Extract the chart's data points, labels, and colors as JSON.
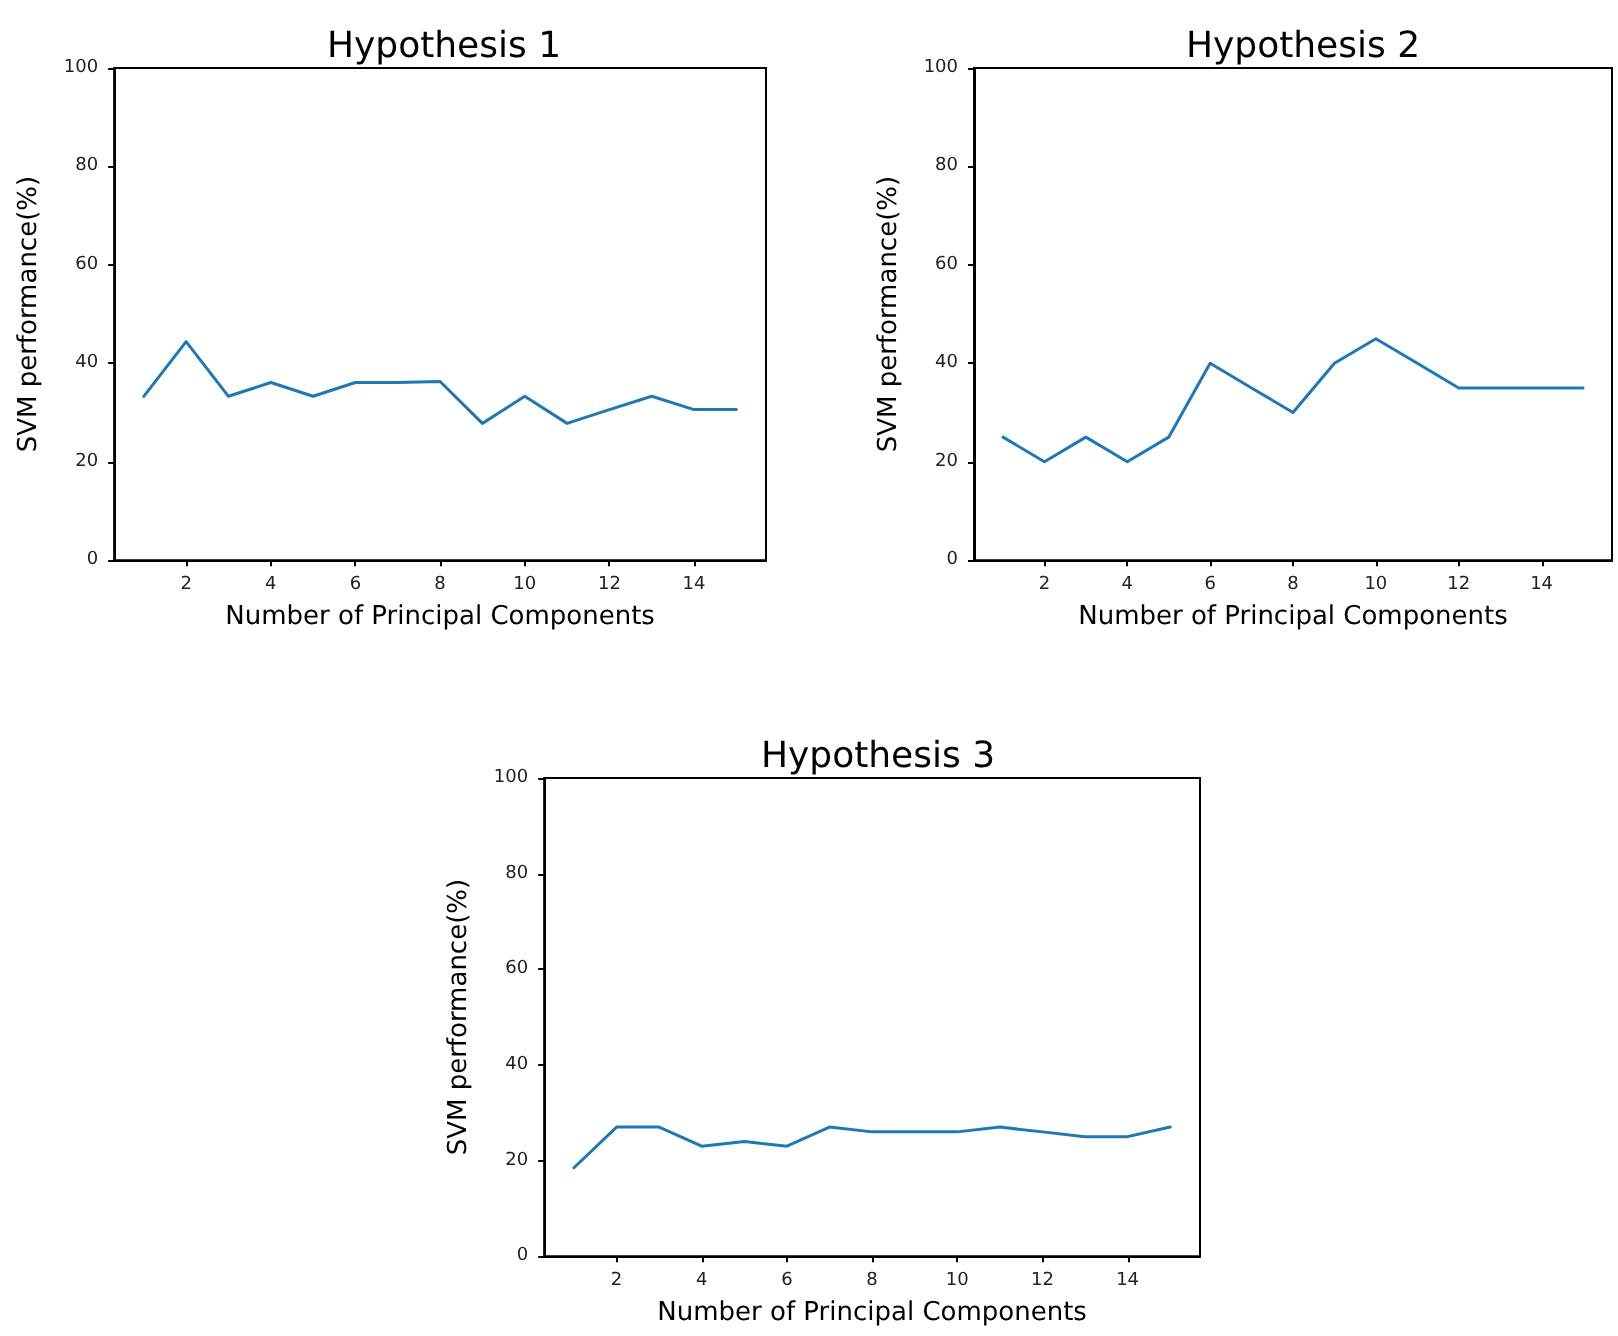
{
  "chart_data": [
    {
      "type": "line",
      "title": "Hypothesis 1",
      "xlabel": "Number of Principal Components",
      "ylabel": "SVM performance(%)",
      "x": [
        1,
        2,
        3,
        4,
        5,
        6,
        7,
        8,
        9,
        10,
        11,
        12,
        13,
        14,
        15
      ],
      "series": [
        {
          "color": "#1f77b4",
          "values": [
            33.3,
            44.4,
            33.3,
            36.1,
            33.3,
            36.1,
            36.1,
            36.3,
            27.8,
            33.3,
            27.8,
            30.6,
            33.3,
            30.6,
            30.6
          ]
        }
      ],
      "xlim": [
        0.3,
        15.7
      ],
      "xticks": [
        2,
        4,
        6,
        8,
        10,
        12,
        14
      ],
      "ylim": [
        0,
        100
      ],
      "yticks": [
        0,
        20,
        40,
        60,
        80,
        100
      ],
      "grid": false,
      "marker": "none",
      "line_style": "solid"
    },
    {
      "type": "line",
      "title": "Hypothesis 2",
      "xlabel": "Number of Principal Components",
      "ylabel": "SVM performance(%)",
      "x": [
        1,
        2,
        3,
        4,
        5,
        6,
        7,
        8,
        9,
        10,
        11,
        12,
        13,
        14,
        15
      ],
      "series": [
        {
          "color": "#1f77b4",
          "values": [
            25,
            20,
            25,
            20,
            25,
            40,
            35,
            30,
            40,
            45,
            40,
            35,
            35,
            35,
            35
          ]
        }
      ],
      "xlim": [
        0.3,
        15.7
      ],
      "xticks": [
        2,
        4,
        6,
        8,
        10,
        12,
        14
      ],
      "ylim": [
        0,
        100
      ],
      "yticks": [
        0,
        20,
        40,
        60,
        80,
        100
      ],
      "grid": false,
      "marker": "none",
      "line_style": "solid"
    },
    {
      "type": "line",
      "title": "Hypothesis 3",
      "xlabel": "Number of Principal Components",
      "ylabel": "SVM performance(%)",
      "x": [
        1,
        2,
        3,
        4,
        5,
        6,
        7,
        8,
        9,
        10,
        11,
        12,
        13,
        14,
        15
      ],
      "series": [
        {
          "color": "#1f77b4",
          "values": [
            18.5,
            27,
            27,
            23,
            24,
            23,
            27,
            26,
            26,
            26,
            27,
            26,
            25,
            25,
            27
          ]
        }
      ],
      "xlim": [
        0.3,
        15.7
      ],
      "xticks": [
        2,
        4,
        6,
        8,
        10,
        12,
        14
      ],
      "ylim": [
        0,
        100
      ],
      "yticks": [
        0,
        20,
        40,
        60,
        80,
        100
      ],
      "grid": false,
      "marker": "none",
      "line_style": "solid"
    }
  ]
}
